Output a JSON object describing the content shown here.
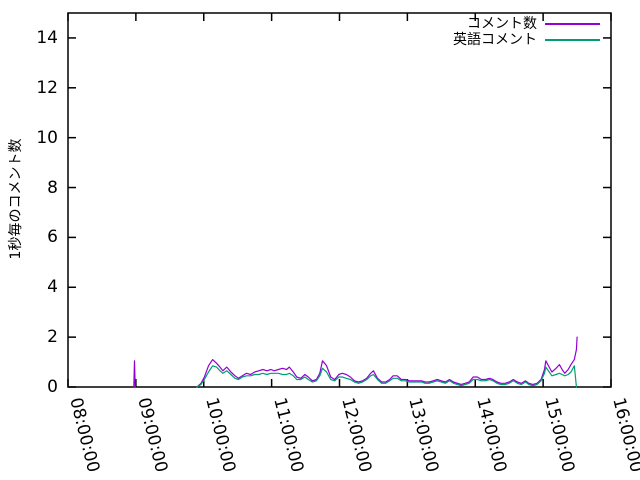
{
  "chart_data": {
    "type": "line",
    "title": "",
    "xlabel": "",
    "ylabel": "1秒毎のコメント数",
    "xlim": [
      "08:00:00",
      "16:00:00"
    ],
    "xlim_hours": [
      8,
      16
    ],
    "ylim": [
      0,
      15
    ],
    "grid": false,
    "legend_position": "top-right-inside",
    "x_ticks": [
      {
        "hour": 8,
        "label": "08:00:00"
      },
      {
        "hour": 9,
        "label": "09:00:00"
      },
      {
        "hour": 10,
        "label": "10:00:00"
      },
      {
        "hour": 11,
        "label": "11:00:00"
      },
      {
        "hour": 12,
        "label": "12:00:00"
      },
      {
        "hour": 13,
        "label": "13:00:00"
      },
      {
        "hour": 14,
        "label": "14:00:00"
      },
      {
        "hour": 15,
        "label": "15:00:00"
      },
      {
        "hour": 16,
        "label": "16:00:00"
      }
    ],
    "y_ticks": [
      0,
      2,
      4,
      6,
      8,
      10,
      12,
      14
    ],
    "series": [
      {
        "name": "コメント数",
        "color": "#9400d3",
        "segments": [
          [
            [
              8.97,
              0
            ],
            [
              8.98,
              1.05
            ],
            [
              8.99,
              0
            ]
          ],
          [
            [
              9.9,
              0
            ],
            [
              9.96,
              0.15
            ],
            [
              10.01,
              0.4
            ],
            [
              10.07,
              0.85
            ],
            [
              10.13,
              1.1
            ],
            [
              10.19,
              0.95
            ],
            [
              10.24,
              0.8
            ],
            [
              10.28,
              0.65
            ],
            [
              10.34,
              0.8
            ],
            [
              10.4,
              0.6
            ],
            [
              10.46,
              0.45
            ],
            [
              10.51,
              0.35
            ],
            [
              10.57,
              0.45
            ],
            [
              10.63,
              0.55
            ],
            [
              10.69,
              0.5
            ],
            [
              10.75,
              0.6
            ],
            [
              10.81,
              0.65
            ],
            [
              10.87,
              0.7
            ],
            [
              10.93,
              0.65
            ],
            [
              10.99,
              0.7
            ],
            [
              11.04,
              0.65
            ],
            [
              11.1,
              0.7
            ],
            [
              11.16,
              0.75
            ],
            [
              11.22,
              0.7
            ],
            [
              11.26,
              0.8
            ],
            [
              11.32,
              0.6
            ],
            [
              11.37,
              0.4
            ],
            [
              11.43,
              0.35
            ],
            [
              11.49,
              0.5
            ],
            [
              11.54,
              0.4
            ],
            [
              11.6,
              0.25
            ],
            [
              11.66,
              0.3
            ],
            [
              11.71,
              0.55
            ],
            [
              11.75,
              1.05
            ],
            [
              11.81,
              0.85
            ],
            [
              11.87,
              0.4
            ],
            [
              11.93,
              0.3
            ],
            [
              11.99,
              0.5
            ],
            [
              12.04,
              0.55
            ],
            [
              12.1,
              0.5
            ],
            [
              12.16,
              0.4
            ],
            [
              12.22,
              0.25
            ],
            [
              12.28,
              0.2
            ],
            [
              12.34,
              0.25
            ],
            [
              12.4,
              0.35
            ],
            [
              12.46,
              0.55
            ],
            [
              12.5,
              0.65
            ],
            [
              12.56,
              0.35
            ],
            [
              12.62,
              0.2
            ],
            [
              12.68,
              0.2
            ],
            [
              12.74,
              0.3
            ],
            [
              12.79,
              0.45
            ],
            [
              12.85,
              0.45
            ],
            [
              12.91,
              0.3
            ],
            [
              12.97,
              0.3
            ],
            [
              13.03,
              0.25
            ],
            [
              13.09,
              0.25
            ],
            [
              13.15,
              0.25
            ],
            [
              13.21,
              0.25
            ],
            [
              13.26,
              0.2
            ],
            [
              13.32,
              0.2
            ],
            [
              13.38,
              0.25
            ],
            [
              13.44,
              0.3
            ],
            [
              13.5,
              0.25
            ],
            [
              13.56,
              0.2
            ],
            [
              13.62,
              0.3
            ],
            [
              13.68,
              0.2
            ],
            [
              13.74,
              0.15
            ],
            [
              13.79,
              0.1
            ],
            [
              13.85,
              0.15
            ],
            [
              13.91,
              0.2
            ],
            [
              13.97,
              0.4
            ],
            [
              14.03,
              0.4
            ],
            [
              14.09,
              0.3
            ],
            [
              14.15,
              0.3
            ],
            [
              14.21,
              0.35
            ],
            [
              14.26,
              0.3
            ],
            [
              14.32,
              0.2
            ],
            [
              14.38,
              0.15
            ],
            [
              14.44,
              0.15
            ],
            [
              14.5,
              0.2
            ],
            [
              14.56,
              0.3
            ],
            [
              14.62,
              0.2
            ],
            [
              14.68,
              0.15
            ],
            [
              14.74,
              0.25
            ],
            [
              14.79,
              0.15
            ],
            [
              14.85,
              0.1
            ],
            [
              14.91,
              0.15
            ],
            [
              14.97,
              0.3
            ],
            [
              15.02,
              0.7
            ],
            [
              15.04,
              1.05
            ],
            [
              15.09,
              0.8
            ],
            [
              15.13,
              0.6
            ],
            [
              15.19,
              0.75
            ],
            [
              15.24,
              0.9
            ],
            [
              15.28,
              0.7
            ],
            [
              15.32,
              0.55
            ],
            [
              15.37,
              0.7
            ],
            [
              15.41,
              0.9
            ],
            [
              15.46,
              1.1
            ],
            [
              15.49,
              1.5
            ],
            [
              15.5,
              2.0
            ]
          ]
        ]
      },
      {
        "name": "英語コメント",
        "color": "#009e73",
        "segments": [
          [
            [
              9.9,
              0
            ],
            [
              9.96,
              0.1
            ],
            [
              10.01,
              0.3
            ],
            [
              10.07,
              0.6
            ],
            [
              10.13,
              0.85
            ],
            [
              10.19,
              0.8
            ],
            [
              10.24,
              0.65
            ],
            [
              10.28,
              0.55
            ],
            [
              10.34,
              0.65
            ],
            [
              10.4,
              0.5
            ],
            [
              10.46,
              0.35
            ],
            [
              10.51,
              0.3
            ],
            [
              10.57,
              0.4
            ],
            [
              10.63,
              0.45
            ],
            [
              10.69,
              0.45
            ],
            [
              10.75,
              0.5
            ],
            [
              10.81,
              0.5
            ],
            [
              10.87,
              0.55
            ],
            [
              10.93,
              0.5
            ],
            [
              10.99,
              0.55
            ],
            [
              11.04,
              0.55
            ],
            [
              11.1,
              0.55
            ],
            [
              11.16,
              0.5
            ],
            [
              11.22,
              0.5
            ],
            [
              11.26,
              0.55
            ],
            [
              11.32,
              0.45
            ],
            [
              11.37,
              0.3
            ],
            [
              11.43,
              0.3
            ],
            [
              11.49,
              0.4
            ],
            [
              11.54,
              0.3
            ],
            [
              11.6,
              0.2
            ],
            [
              11.66,
              0.25
            ],
            [
              11.71,
              0.45
            ],
            [
              11.75,
              0.75
            ],
            [
              11.81,
              0.6
            ],
            [
              11.87,
              0.3
            ],
            [
              11.93,
              0.25
            ],
            [
              11.99,
              0.4
            ],
            [
              12.04,
              0.4
            ],
            [
              12.1,
              0.35
            ],
            [
              12.16,
              0.3
            ],
            [
              12.22,
              0.2
            ],
            [
              12.28,
              0.15
            ],
            [
              12.34,
              0.2
            ],
            [
              12.4,
              0.3
            ],
            [
              12.46,
              0.45
            ],
            [
              12.5,
              0.5
            ],
            [
              12.56,
              0.3
            ],
            [
              12.62,
              0.15
            ],
            [
              12.68,
              0.15
            ],
            [
              12.74,
              0.25
            ],
            [
              12.79,
              0.35
            ],
            [
              12.85,
              0.35
            ],
            [
              12.91,
              0.25
            ],
            [
              12.97,
              0.25
            ],
            [
              13.03,
              0.2
            ],
            [
              13.09,
              0.2
            ],
            [
              13.15,
              0.2
            ],
            [
              13.21,
              0.2
            ],
            [
              13.26,
              0.15
            ],
            [
              13.32,
              0.15
            ],
            [
              13.38,
              0.2
            ],
            [
              13.44,
              0.25
            ],
            [
              13.5,
              0.2
            ],
            [
              13.56,
              0.15
            ],
            [
              13.62,
              0.25
            ],
            [
              13.68,
              0.15
            ],
            [
              13.74,
              0.1
            ],
            [
              13.79,
              0.05
            ],
            [
              13.85,
              0.1
            ],
            [
              13.91,
              0.15
            ],
            [
              13.97,
              0.3
            ],
            [
              14.03,
              0.3
            ],
            [
              14.09,
              0.25
            ],
            [
              14.15,
              0.25
            ],
            [
              14.21,
              0.3
            ],
            [
              14.26,
              0.25
            ],
            [
              14.32,
              0.15
            ],
            [
              14.38,
              0.1
            ],
            [
              14.44,
              0.1
            ],
            [
              14.5,
              0.15
            ],
            [
              14.56,
              0.25
            ],
            [
              14.62,
              0.15
            ],
            [
              14.68,
              0.1
            ],
            [
              14.74,
              0.2
            ],
            [
              14.79,
              0.1
            ],
            [
              14.85,
              0.05
            ],
            [
              14.91,
              0.1
            ],
            [
              14.97,
              0.25
            ],
            [
              15.02,
              0.55
            ],
            [
              15.04,
              0.8
            ],
            [
              15.09,
              0.6
            ],
            [
              15.13,
              0.45
            ],
            [
              15.19,
              0.5
            ],
            [
              15.24,
              0.55
            ],
            [
              15.28,
              0.5
            ],
            [
              15.32,
              0.45
            ],
            [
              15.37,
              0.5
            ],
            [
              15.41,
              0.6
            ],
            [
              15.46,
              0.85
            ],
            [
              15.48,
              0.3
            ],
            [
              15.49,
              0
            ]
          ]
        ]
      }
    ],
    "axis_color": "#000000",
    "background_color": "#ffffff"
  }
}
